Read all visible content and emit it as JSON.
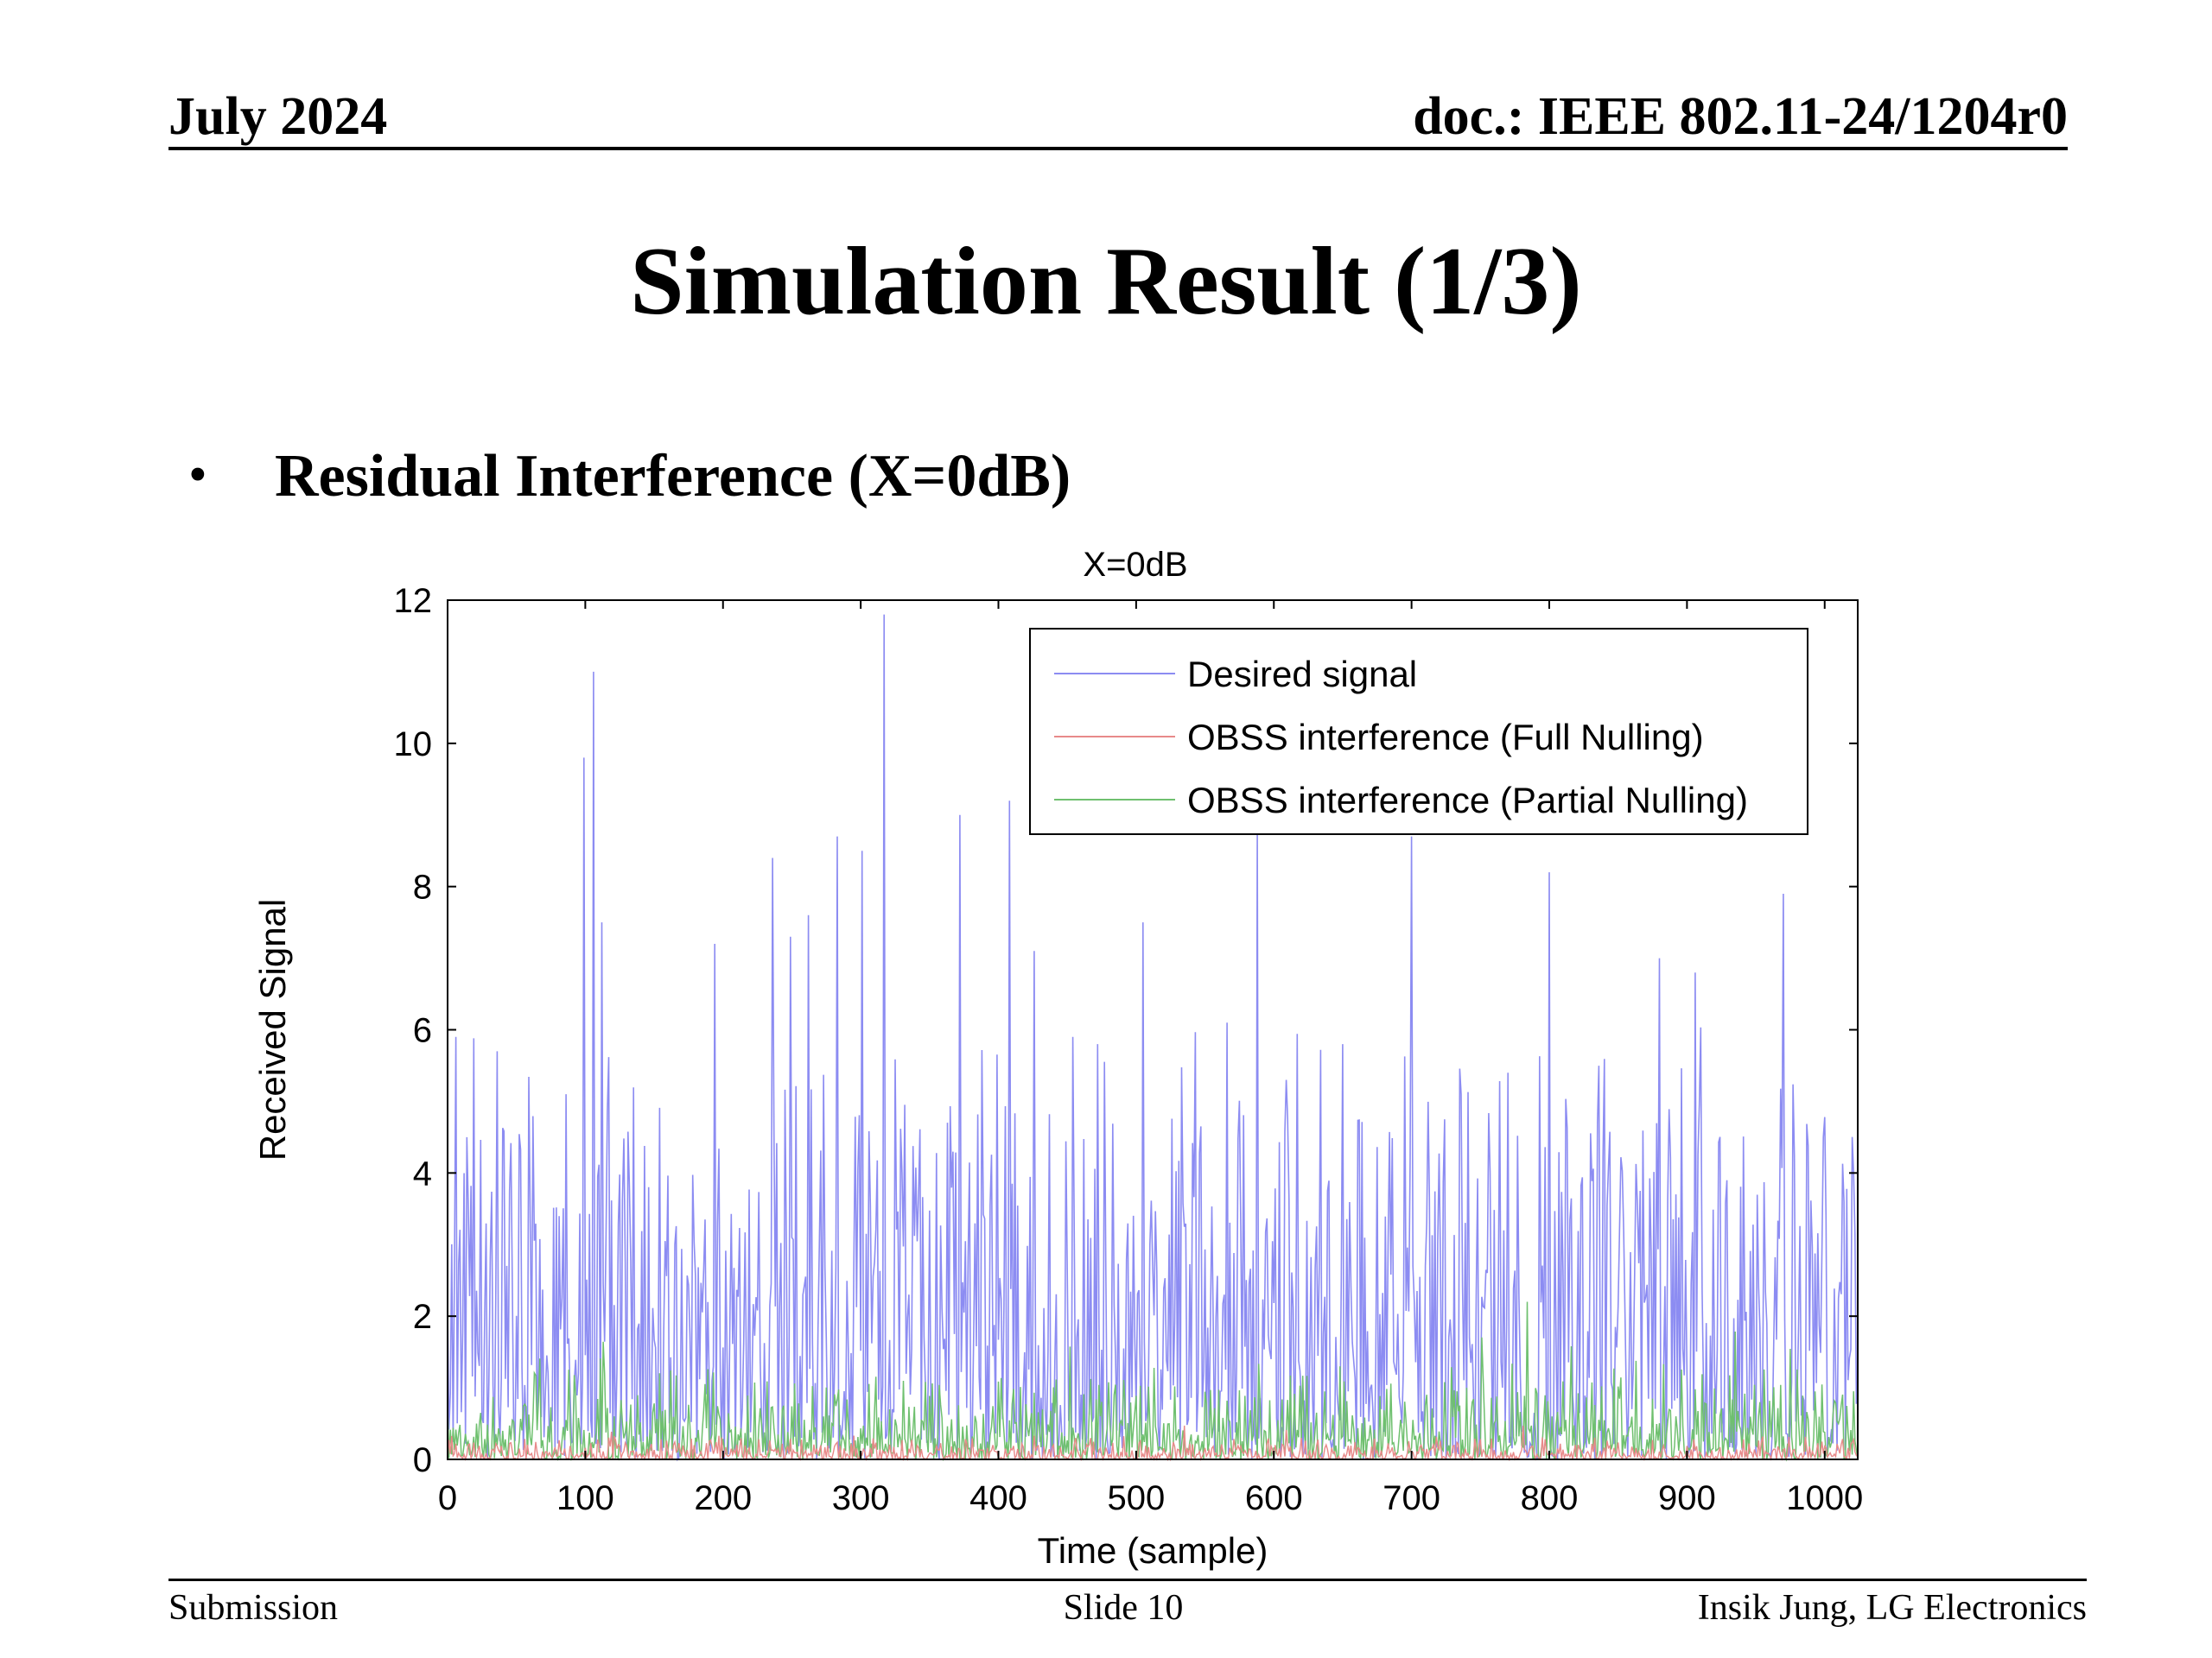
{
  "header": {
    "date": "July 2024",
    "doc": "doc.: IEEE 802.11-24/1204r0"
  },
  "slide": {
    "title": "Simulation Result (1/3)",
    "bullet": "Residual Interference (X=0dB)"
  },
  "footer": {
    "left": "Submission",
    "center": "Slide 10",
    "right": "Insik Jung, LG Electronics"
  },
  "chart_data": {
    "type": "line",
    "title": "X=0dB",
    "xlabel": "Time (sample)",
    "ylabel": "Received Signal",
    "xlim": [
      0,
      1024
    ],
    "ylim": [
      0,
      12
    ],
    "xticks": [
      "0",
      "100",
      "200",
      "300",
      "400",
      "500",
      "600",
      "700",
      "800",
      "900",
      "1000"
    ],
    "yticks": [
      "0",
      "2",
      "4",
      "6",
      "8",
      "10",
      "12"
    ],
    "grid": false,
    "legend_position": "top-right",
    "series": [
      {
        "name": "Desired signal",
        "color": "#8c8cf2",
        "peaks": [
          [
            6,
            5.9
          ],
          [
            14,
            4.5
          ],
          [
            36,
            5.7
          ],
          [
            86,
            5.1
          ],
          [
            99,
            9.8
          ],
          [
            106,
            11.0
          ],
          [
            112,
            7.5
          ],
          [
            194,
            7.2
          ],
          [
            236,
            8.4
          ],
          [
            249,
            7.3
          ],
          [
            262,
            7.6
          ],
          [
            283,
            8.7
          ],
          [
            301,
            8.5
          ],
          [
            317,
            11.8
          ],
          [
            372,
            9.0
          ],
          [
            408,
            9.2
          ],
          [
            426,
            7.1
          ],
          [
            454,
            5.9
          ],
          [
            472,
            5.8
          ],
          [
            505,
            7.5
          ],
          [
            566,
            6.1
          ],
          [
            588,
            8.8
          ],
          [
            609,
            5.3
          ],
          [
            650,
            5.8
          ],
          [
            700,
            8.7
          ],
          [
            736,
            5.1
          ],
          [
            770,
            5.4
          ],
          [
            800,
            8.2
          ],
          [
            880,
            7.0
          ],
          [
            906,
            6.8
          ],
          [
            970,
            7.9
          ],
          [
            999,
            4.5
          ]
        ],
        "baseline_max": 4.0
      },
      {
        "name": "OBSS interference (Full Nulling)",
        "color": "#e88a8a",
        "typical_max": 0.35
      },
      {
        "name": "OBSS interference (Partial Nulling)",
        "color": "#6fc06f",
        "typical_max": 1.8
      }
    ]
  }
}
